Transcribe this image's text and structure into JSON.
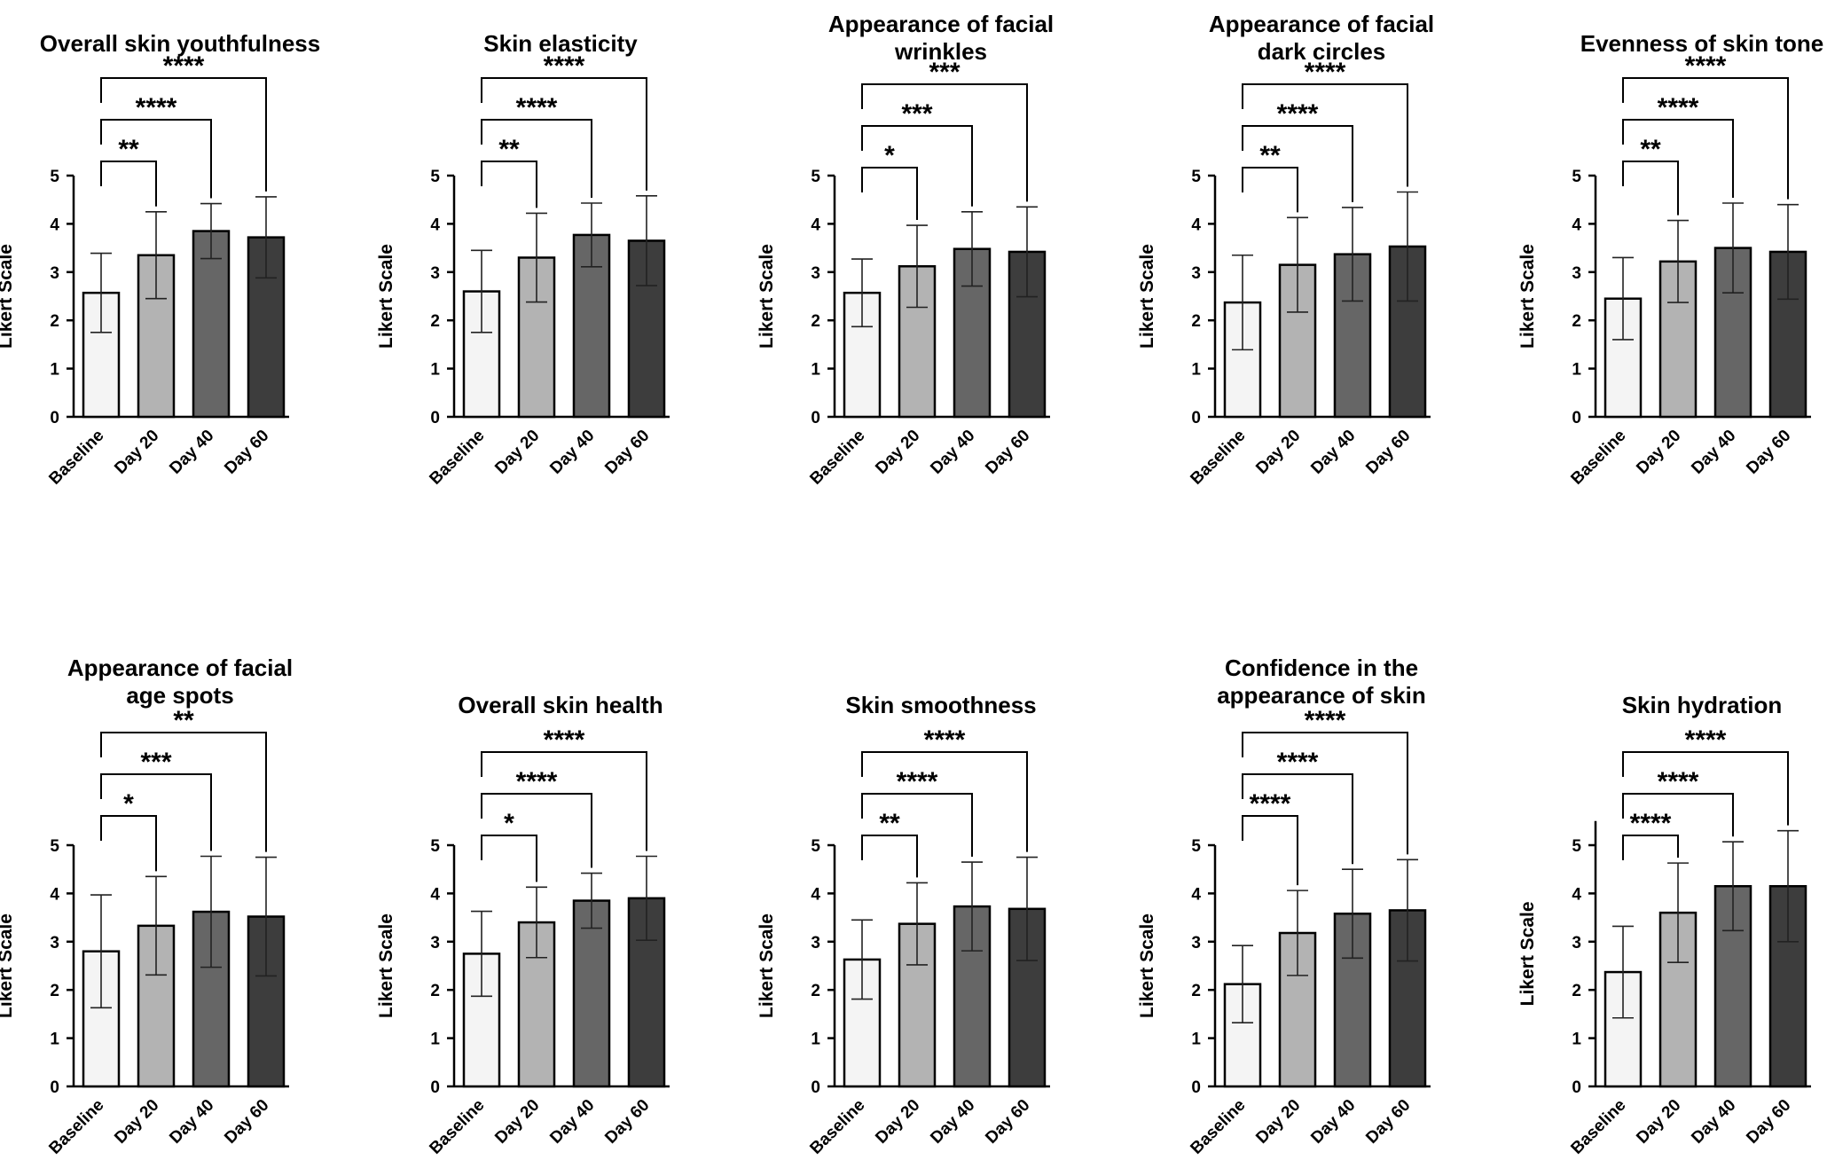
{
  "chart_data": [
    {
      "type": "bar",
      "title": [
        "Overall skin youthfulness"
      ],
      "ylabel": "Likert Scale",
      "categories": [
        "Baseline",
        "Day 20",
        "Day 40",
        "Day 60"
      ],
      "values": [
        2.57,
        3.35,
        3.85,
        3.72
      ],
      "error": [
        0.82,
        0.9,
        0.57,
        0.84
      ],
      "ylim": [
        0,
        5
      ],
      "yticks": [
        "0",
        "1",
        "2",
        "3",
        "4",
        "5"
      ],
      "bar_colors": [
        "#f4f4f4",
        "#b3b3b3",
        "#666666",
        "#3d3d3d"
      ],
      "significance": [
        {
          "from": "Baseline",
          "to": "Day 20",
          "label": "**"
        },
        {
          "from": "Baseline",
          "to": "Day 40",
          "label": "****"
        },
        {
          "from": "Baseline",
          "to": "Day 60",
          "label": "****"
        }
      ]
    },
    {
      "type": "bar",
      "title": [
        "Skin elasticity"
      ],
      "ylabel": "Likert Scale",
      "categories": [
        "Baseline",
        "Day 20",
        "Day 40",
        "Day 60"
      ],
      "values": [
        2.6,
        3.3,
        3.77,
        3.65
      ],
      "error": [
        0.85,
        0.92,
        0.66,
        0.93
      ],
      "ylim": [
        0,
        5
      ],
      "yticks": [
        "0",
        "1",
        "2",
        "3",
        "4",
        "5"
      ],
      "bar_colors": [
        "#f4f4f4",
        "#b3b3b3",
        "#666666",
        "#3d3d3d"
      ],
      "significance": [
        {
          "from": "Baseline",
          "to": "Day 20",
          "label": "**"
        },
        {
          "from": "Baseline",
          "to": "Day 40",
          "label": "****"
        },
        {
          "from": "Baseline",
          "to": "Day 60",
          "label": "****"
        }
      ]
    },
    {
      "type": "bar",
      "title": [
        "Appearance of facial",
        "wrinkles"
      ],
      "ylabel": "Likert Scale",
      "categories": [
        "Baseline",
        "Day 20",
        "Day 40",
        "Day 60"
      ],
      "values": [
        2.57,
        3.12,
        3.48,
        3.42
      ],
      "error": [
        0.7,
        0.85,
        0.77,
        0.93
      ],
      "ylim": [
        0,
        5
      ],
      "yticks": [
        "0",
        "1",
        "2",
        "3",
        "4",
        "5"
      ],
      "bar_colors": [
        "#f4f4f4",
        "#b3b3b3",
        "#666666",
        "#3d3d3d"
      ],
      "significance": [
        {
          "from": "Baseline",
          "to": "Day 20",
          "label": "*"
        },
        {
          "from": "Baseline",
          "to": "Day 40",
          "label": "***"
        },
        {
          "from": "Baseline",
          "to": "Day 60",
          "label": "***"
        }
      ]
    },
    {
      "type": "bar",
      "title": [
        "Appearance of facial",
        "dark circles"
      ],
      "ylabel": "Likert Scale",
      "categories": [
        "Baseline",
        "Day 20",
        "Day 40",
        "Day 60"
      ],
      "values": [
        2.37,
        3.15,
        3.37,
        3.53
      ],
      "error": [
        0.98,
        0.98,
        0.97,
        1.13
      ],
      "ylim": [
        0,
        5
      ],
      "yticks": [
        "0",
        "1",
        "2",
        "3",
        "4",
        "5"
      ],
      "bar_colors": [
        "#f4f4f4",
        "#b3b3b3",
        "#666666",
        "#3d3d3d"
      ],
      "significance": [
        {
          "from": "Baseline",
          "to": "Day 20",
          "label": "**"
        },
        {
          "from": "Baseline",
          "to": "Day 40",
          "label": "****"
        },
        {
          "from": "Baseline",
          "to": "Day 60",
          "label": "****"
        }
      ]
    },
    {
      "type": "bar",
      "title": [
        "Evenness of skin tone"
      ],
      "ylabel": "Likert Scale",
      "categories": [
        "Baseline",
        "Day 20",
        "Day 40",
        "Day 60"
      ],
      "values": [
        2.45,
        3.22,
        3.5,
        3.42
      ],
      "error": [
        0.85,
        0.85,
        0.93,
        0.98
      ],
      "ylim": [
        0,
        5
      ],
      "yticks": [
        "0",
        "1",
        "2",
        "3",
        "4",
        "5"
      ],
      "bar_colors": [
        "#f4f4f4",
        "#b3b3b3",
        "#666666",
        "#3d3d3d"
      ],
      "significance": [
        {
          "from": "Baseline",
          "to": "Day 20",
          "label": "**"
        },
        {
          "from": "Baseline",
          "to": "Day 40",
          "label": "****"
        },
        {
          "from": "Baseline",
          "to": "Day 60",
          "label": "****"
        }
      ]
    },
    {
      "type": "bar",
      "title": [
        "Appearance of facial",
        "age spots"
      ],
      "ylabel": "Likert Scale",
      "categories": [
        "Baseline",
        "Day 20",
        "Day 40",
        "Day 60"
      ],
      "values": [
        2.8,
        3.33,
        3.62,
        3.52
      ],
      "error": [
        1.17,
        1.02,
        1.15,
        1.23
      ],
      "ylim": [
        0,
        5
      ],
      "yticks": [
        "0",
        "1",
        "2",
        "3",
        "4",
        "5"
      ],
      "bar_colors": [
        "#f4f4f4",
        "#b3b3b3",
        "#666666",
        "#3d3d3d"
      ],
      "significance": [
        {
          "from": "Baseline",
          "to": "Day 20",
          "label": "*"
        },
        {
          "from": "Baseline",
          "to": "Day 40",
          "label": "***"
        },
        {
          "from": "Baseline",
          "to": "Day 60",
          "label": "**"
        }
      ]
    },
    {
      "type": "bar",
      "title": [
        "Overall skin health"
      ],
      "ylabel": "Likert Scale",
      "categories": [
        "Baseline",
        "Day 20",
        "Day 40",
        "Day 60"
      ],
      "values": [
        2.75,
        3.4,
        3.85,
        3.9
      ],
      "error": [
        0.88,
        0.73,
        0.57,
        0.87
      ],
      "ylim": [
        0,
        5
      ],
      "yticks": [
        "0",
        "1",
        "2",
        "3",
        "4",
        "5"
      ],
      "bar_colors": [
        "#f4f4f4",
        "#b3b3b3",
        "#666666",
        "#3d3d3d"
      ],
      "significance": [
        {
          "from": "Baseline",
          "to": "Day 20",
          "label": "*"
        },
        {
          "from": "Baseline",
          "to": "Day 40",
          "label": "****"
        },
        {
          "from": "Baseline",
          "to": "Day 60",
          "label": "****"
        }
      ]
    },
    {
      "type": "bar",
      "title": [
        "Skin smoothness"
      ],
      "ylabel": "Likert Scale",
      "categories": [
        "Baseline",
        "Day 20",
        "Day 40",
        "Day 60"
      ],
      "values": [
        2.63,
        3.37,
        3.73,
        3.68
      ],
      "error": [
        0.82,
        0.85,
        0.92,
        1.07
      ],
      "ylim": [
        0,
        5
      ],
      "yticks": [
        "0",
        "1",
        "2",
        "3",
        "4",
        "5"
      ],
      "bar_colors": [
        "#f4f4f4",
        "#b3b3b3",
        "#666666",
        "#3d3d3d"
      ],
      "significance": [
        {
          "from": "Baseline",
          "to": "Day 20",
          "label": "**"
        },
        {
          "from": "Baseline",
          "to": "Day 40",
          "label": "****"
        },
        {
          "from": "Baseline",
          "to": "Day 60",
          "label": "****"
        }
      ]
    },
    {
      "type": "bar",
      "title": [
        "Confidence in the",
        "appearance of skin"
      ],
      "ylabel": "Likert Scale",
      "categories": [
        "Baseline",
        "Day 20",
        "Day 40",
        "Day 60"
      ],
      "values": [
        2.12,
        3.18,
        3.58,
        3.65
      ],
      "error": [
        0.8,
        0.88,
        0.92,
        1.05
      ],
      "ylim": [
        0,
        5
      ],
      "yticks": [
        "0",
        "1",
        "2",
        "3",
        "4",
        "5"
      ],
      "bar_colors": [
        "#f4f4f4",
        "#b3b3b3",
        "#666666",
        "#3d3d3d"
      ],
      "significance": [
        {
          "from": "Baseline",
          "to": "Day 20",
          "label": "****"
        },
        {
          "from": "Baseline",
          "to": "Day 40",
          "label": "****"
        },
        {
          "from": "Baseline",
          "to": "Day 60",
          "label": "****"
        }
      ]
    },
    {
      "type": "bar",
      "title": [
        "Skin hydration"
      ],
      "ylabel": "Likert Scale",
      "categories": [
        "Baseline",
        "Day 20",
        "Day 40",
        "Day 60"
      ],
      "values": [
        2.37,
        3.6,
        4.15,
        4.15
      ],
      "error": [
        0.95,
        1.03,
        0.92,
        1.15
      ],
      "ylim": [
        0,
        5.5
      ],
      "yticks": [
        "0",
        "1",
        "2",
        "3",
        "4",
        "5"
      ],
      "bar_colors": [
        "#f4f4f4",
        "#b3b3b3",
        "#666666",
        "#3d3d3d"
      ],
      "significance": [
        {
          "from": "Baseline",
          "to": "Day 20",
          "label": "****"
        },
        {
          "from": "Baseline",
          "to": "Day 40",
          "label": "****"
        },
        {
          "from": "Baseline",
          "to": "Day 60",
          "label": "****"
        }
      ]
    }
  ]
}
